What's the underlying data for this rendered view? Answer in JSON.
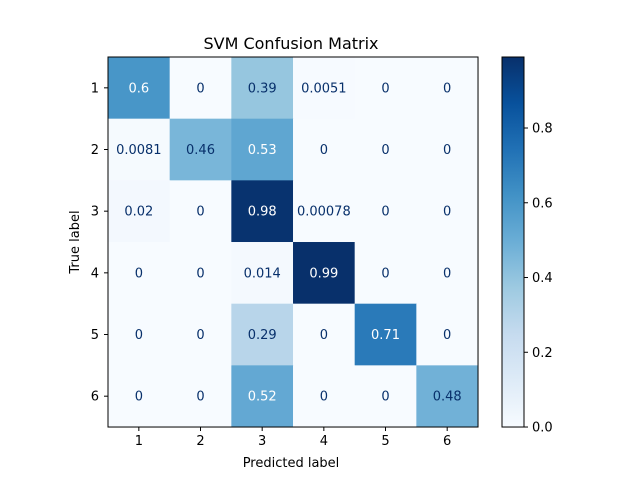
{
  "chart_data": {
    "type": "heatmap",
    "title": "SVM Confusion Matrix",
    "xlabel": "Predicted label",
    "ylabel": "True label",
    "x_categories": [
      "1",
      "2",
      "3",
      "4",
      "5",
      "6"
    ],
    "y_categories": [
      "1",
      "2",
      "3",
      "4",
      "5",
      "6"
    ],
    "values": [
      [
        0.6,
        0,
        0.39,
        0.0051,
        0,
        0
      ],
      [
        0.0081,
        0.46,
        0.53,
        0,
        0,
        0
      ],
      [
        0.02,
        0,
        0.98,
        0.00078,
        0,
        0
      ],
      [
        0,
        0,
        0.014,
        0.99,
        0,
        0
      ],
      [
        0,
        0,
        0.29,
        0,
        0.71,
        0
      ],
      [
        0,
        0,
        0.52,
        0,
        0,
        0.48
      ]
    ],
    "cell_labels": [
      [
        "0.6",
        "0",
        "0.39",
        "0.0051",
        "0",
        "0"
      ],
      [
        "0.0081",
        "0.46",
        "0.53",
        "0",
        "0",
        "0"
      ],
      [
        "0.02",
        "0",
        "0.98",
        "0.00078",
        "0",
        "0"
      ],
      [
        "0",
        "0",
        "0.014",
        "0.99",
        "0",
        "0"
      ],
      [
        "0",
        "0",
        "0.29",
        "0",
        "0.71",
        "0"
      ],
      [
        "0",
        "0",
        "0.52",
        "0",
        "0",
        "0.48"
      ]
    ],
    "colormap": "Blues",
    "colorbar": {
      "range": [
        0,
        0.99
      ],
      "ticks": [
        0.0,
        0.2,
        0.4,
        0.6,
        0.8
      ],
      "tick_labels": [
        "0.0",
        "0.2",
        "0.4",
        "0.6",
        "0.8"
      ]
    },
    "grid": false
  }
}
